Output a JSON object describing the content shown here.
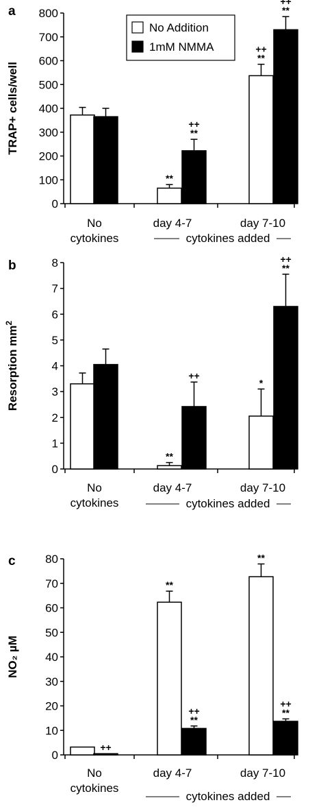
{
  "chart_data": [
    {
      "type": "bar",
      "panel_label": "a",
      "ylabel": "TRAP+ cells/well",
      "ylim": [
        0,
        800
      ],
      "yticks": [
        0,
        100,
        200,
        300,
        400,
        500,
        600,
        700,
        800
      ],
      "categories": [
        [
          "No",
          "cytokines"
        ],
        [
          "day 4-7"
        ],
        [
          "day 7-10"
        ]
      ],
      "group_label": "cytokines added",
      "legend": {
        "placement": "top-center",
        "entries": [
          "No Addition",
          "1mM NMMA"
        ]
      },
      "series": [
        {
          "name": "No Addition",
          "color": "#ffffff",
          "values": [
            372,
            65,
            537
          ],
          "errors": [
            32,
            15,
            48
          ],
          "annotations": [
            [
              "",
              ""
            ],
            [
              "**"
            ],
            [
              "**",
              "++"
            ]
          ]
        },
        {
          "name": "1mM NMMA",
          "color": "#000000",
          "values": [
            365,
            222,
            730
          ],
          "errors": [
            35,
            48,
            55
          ],
          "annotations": [
            [
              "",
              ""
            ],
            [
              "**",
              "++"
            ],
            [
              "**",
              "++"
            ]
          ]
        }
      ]
    },
    {
      "type": "bar",
      "panel_label": "b",
      "ylabel": "Resorption mm",
      "ylabel_sup": "2",
      "ylim": [
        0,
        8
      ],
      "yticks": [
        0,
        1,
        2,
        3,
        4,
        5,
        6,
        7,
        8
      ],
      "categories": [
        [
          "No",
          "cytokines"
        ],
        [
          "day 4-7"
        ],
        [
          "day 7-10"
        ]
      ],
      "group_label": "cytokines added",
      "series": [
        {
          "name": "",
          "color": "#ffffff",
          "values": [
            3.3,
            0.13,
            2.05
          ],
          "errors": [
            0.42,
            0.12,
            1.05
          ],
          "annotations": [
            [
              "",
              ""
            ],
            [
              "**"
            ],
            [
              "*"
            ]
          ]
        },
        {
          "name": "",
          "color": "#000000",
          "values": [
            4.05,
            2.42,
            6.3
          ],
          "errors": [
            0.6,
            0.95,
            1.25
          ],
          "annotations": [
            [
              "",
              ""
            ],
            [
              "++"
            ],
            [
              "**",
              "++"
            ]
          ]
        }
      ]
    },
    {
      "type": "bar",
      "panel_label": "c",
      "ylabel": "NO₂ µM",
      "ylim": [
        0,
        80
      ],
      "yticks": [
        0,
        10,
        20,
        30,
        40,
        50,
        60,
        70,
        80
      ],
      "categories": [
        [
          "No",
          "cytokines"
        ],
        [
          "day 4-7"
        ],
        [
          "day 7-10"
        ]
      ],
      "group_label": "cytokines added",
      "series": [
        {
          "name": "",
          "color": "#ffffff",
          "values": [
            3.2,
            62.3,
            72.7
          ],
          "errors": [
            0,
            4.5,
            5.2
          ],
          "annotations": [
            [
              ""
            ],
            [
              "**"
            ],
            [
              "**"
            ]
          ]
        },
        {
          "name": "",
          "color": "#000000",
          "values": [
            0.5,
            10.8,
            13.7
          ],
          "errors": [
            0,
            1.0,
            1.0
          ],
          "annotations": [
            [
              "++"
            ],
            [
              "**",
              "++"
            ],
            [
              "**",
              "++"
            ]
          ]
        }
      ]
    }
  ]
}
